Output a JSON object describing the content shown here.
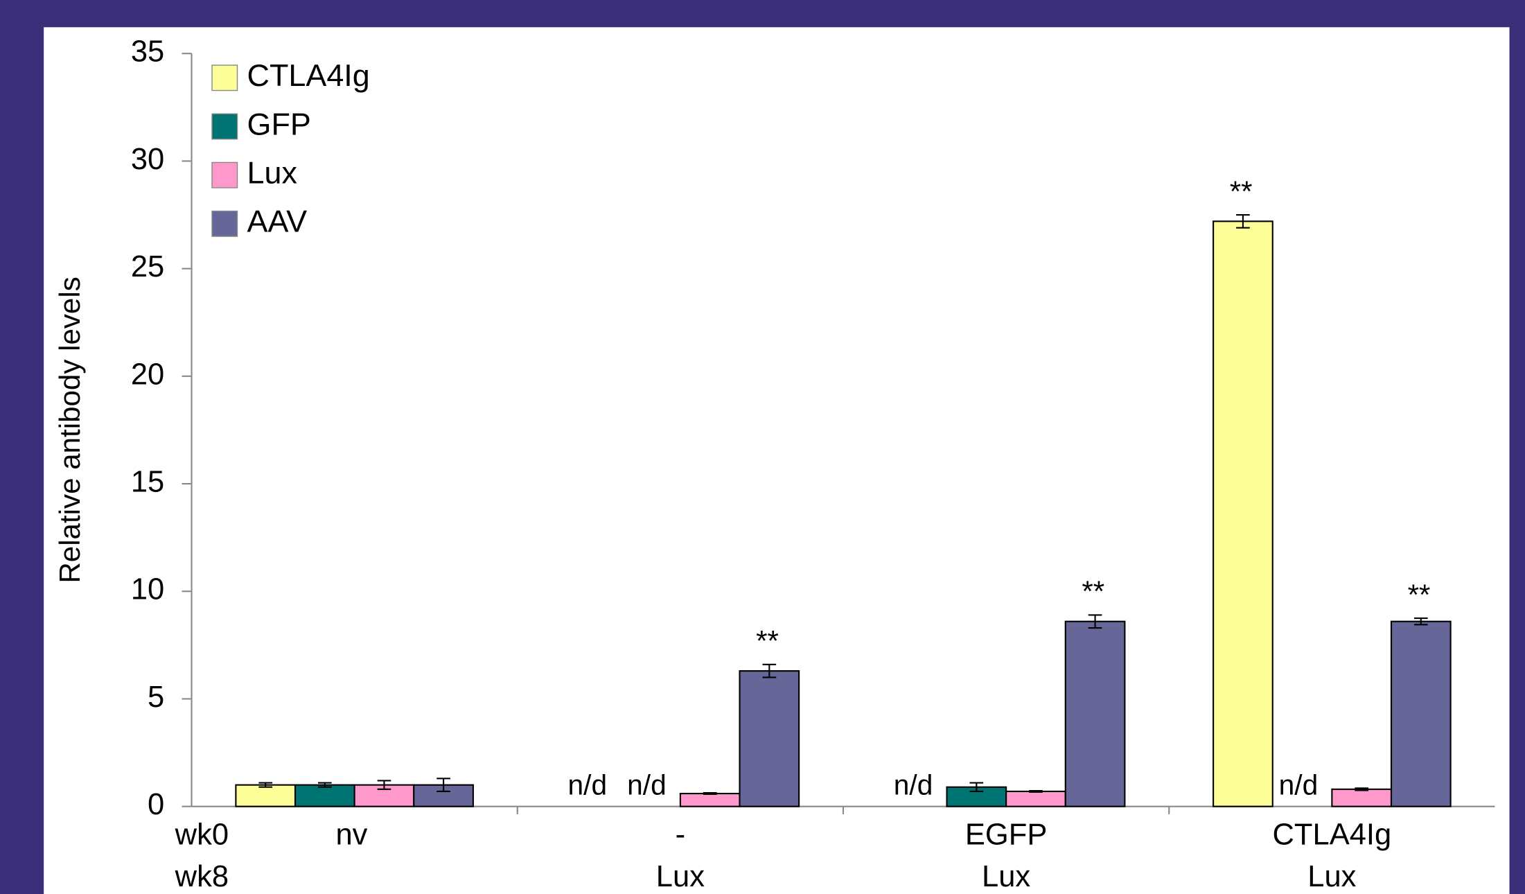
{
  "chart_data": {
    "type": "bar",
    "ylabel": "Relative antibody levels",
    "category_rows": [
      {
        "label": "wk0",
        "categories": [
          "nv",
          "-",
          "EGFP",
          "CTLA4Ig"
        ]
      },
      {
        "label": "wk8",
        "categories": [
          null,
          "Lux",
          "Lux",
          "Lux"
        ]
      }
    ],
    "series": [
      {
        "name": "CTLA4Ig",
        "color": "#ffff99",
        "values": [
          1.0,
          null,
          null,
          27.2
        ],
        "errors": [
          0.1,
          null,
          null,
          0.3
        ],
        "value_labels": [
          null,
          "n/d",
          "n/d",
          null
        ],
        "annotations": [
          null,
          null,
          null,
          "**"
        ]
      },
      {
        "name": "GFP",
        "color": "#007373",
        "values": [
          1.0,
          null,
          0.9,
          null
        ],
        "errors": [
          0.1,
          null,
          0.2,
          null
        ],
        "value_labels": [
          null,
          "n/d",
          null,
          "n/d"
        ],
        "annotations": [
          null,
          null,
          null,
          null
        ]
      },
      {
        "name": "Lux",
        "color": "#ff99cc",
        "values": [
          1.0,
          0.6,
          0.7,
          0.8
        ],
        "errors": [
          0.2,
          0.03,
          0.03,
          0.05
        ],
        "value_labels": [
          null,
          null,
          null,
          null
        ],
        "annotations": [
          null,
          null,
          null,
          null
        ]
      },
      {
        "name": "AAV",
        "color": "#666699",
        "values": [
          1.0,
          6.3,
          8.6,
          8.6
        ],
        "errors": [
          0.3,
          0.3,
          0.3,
          0.15
        ],
        "value_labels": [
          null,
          null,
          null,
          null
        ],
        "annotations": [
          null,
          "**",
          "**",
          "**"
        ]
      }
    ],
    "ylim": [
      0,
      35
    ],
    "yticks": [
      0,
      5,
      10,
      15,
      20,
      25,
      30,
      35
    ],
    "legend": "upper left"
  }
}
